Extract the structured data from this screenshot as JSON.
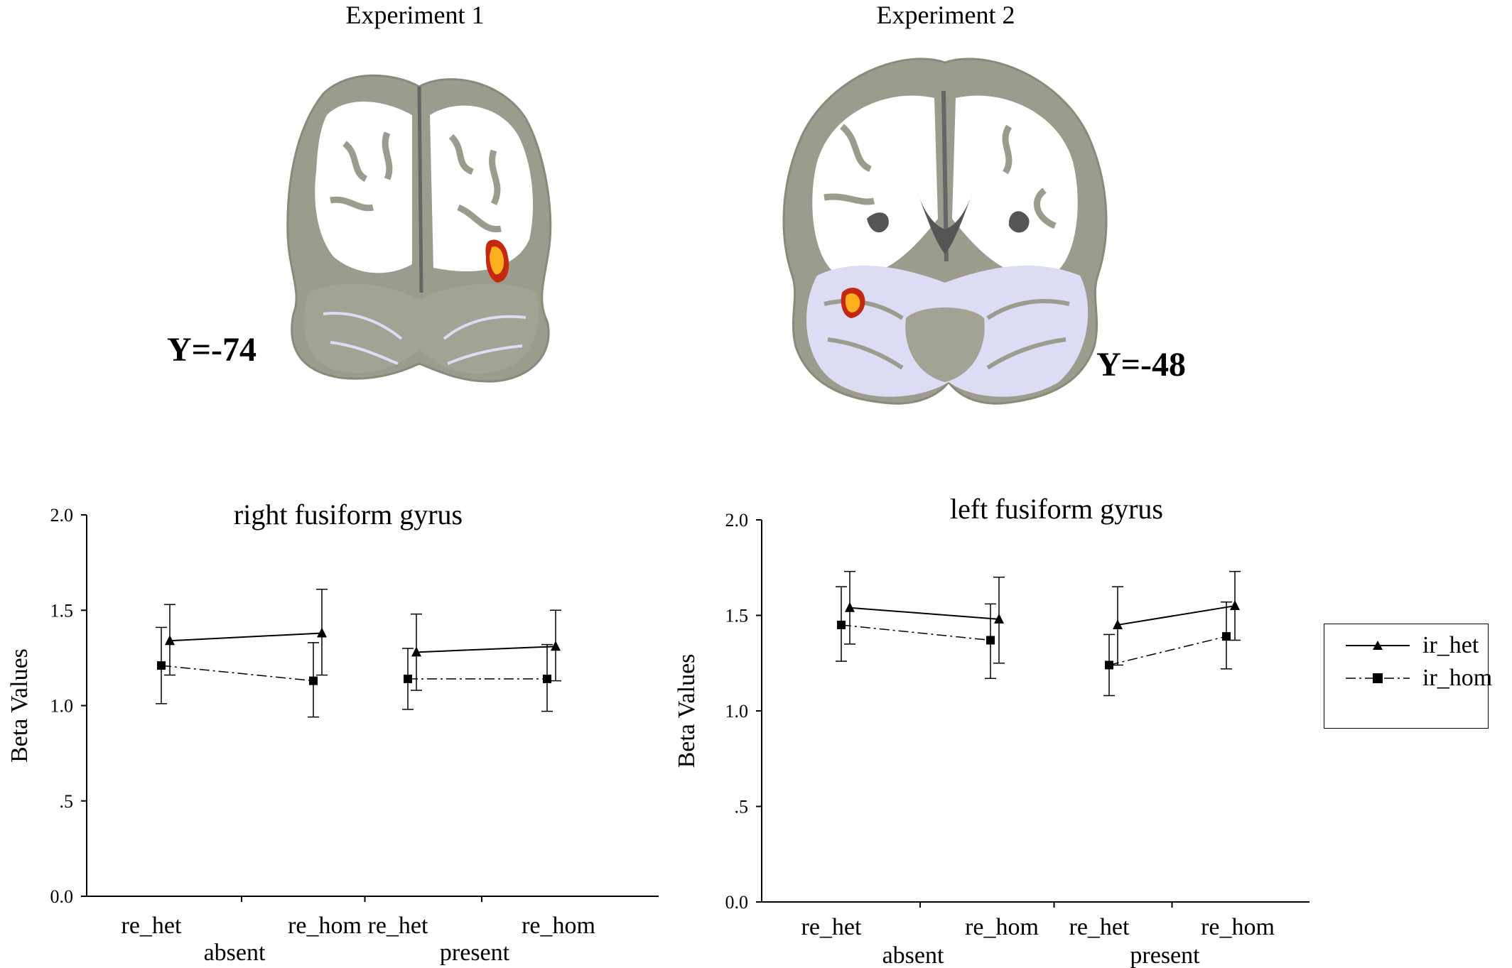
{
  "panels": {
    "exp1": {
      "title": "Experiment 1",
      "coord_label": "Y=-74"
    },
    "exp2": {
      "title": "Experiment 2",
      "coord_label": "Y=-48"
    }
  },
  "legend": {
    "items": [
      {
        "label": "ir_het",
        "marker": "triangle",
        "line": "solid"
      },
      {
        "label": "ir_hom",
        "marker": "square",
        "line": "dashdot"
      }
    ]
  },
  "colors": {
    "brain_gray": "#9c9c8e",
    "brain_white": "#ffffff",
    "brain_lavender": "#dcdcf4",
    "activation_outer": "#c4290f",
    "activation_inner": "#ffb01e",
    "ventricle": "#555555"
  },
  "chart_data": [
    {
      "type": "line",
      "title": "right fusiform gyrus",
      "ylabel": "Beta Values",
      "xlabel": "",
      "ylim": [
        0,
        2
      ],
      "yticks": [
        0,
        0.5,
        1.0,
        1.5,
        2.0
      ],
      "ytick_labels": [
        "0.0",
        ".5",
        "1.0",
        "1.5",
        "2.0"
      ],
      "categories": [
        "re_het",
        "re_hom",
        "re_het",
        "re_hom"
      ],
      "groups": [
        {
          "label": "absent",
          "categories": [
            0,
            1
          ]
        },
        {
          "label": "present",
          "categories": [
            2,
            3
          ]
        }
      ],
      "series": [
        {
          "name": "ir_het",
          "values": [
            1.34,
            1.38,
            1.28,
            1.31
          ],
          "err_low": [
            1.16,
            1.16,
            1.08,
            1.13
          ],
          "err_high": [
            1.53,
            1.61,
            1.48,
            1.5
          ]
        },
        {
          "name": "ir_hom",
          "values": [
            1.21,
            1.13,
            1.14,
            1.14
          ],
          "err_low": [
            1.01,
            0.94,
            0.98,
            0.97
          ],
          "err_high": [
            1.41,
            1.33,
            1.3,
            1.32
          ]
        }
      ],
      "grid": false
    },
    {
      "type": "line",
      "title": "left fusiform gyrus",
      "ylabel": "Beta Values",
      "xlabel": "",
      "ylim": [
        0,
        2
      ],
      "yticks": [
        0,
        0.5,
        1.0,
        1.5,
        2.0
      ],
      "ytick_labels": [
        "0.0",
        ".5",
        "1.0",
        "1.5",
        "2.0"
      ],
      "categories": [
        "re_het",
        "re_hom",
        "re_het",
        "re_hom"
      ],
      "groups": [
        {
          "label": "absent",
          "categories": [
            0,
            1
          ]
        },
        {
          "label": "present",
          "categories": [
            2,
            3
          ]
        }
      ],
      "series": [
        {
          "name": "ir_het",
          "values": [
            1.54,
            1.48,
            1.45,
            1.55
          ],
          "err_low": [
            1.35,
            1.25,
            1.24,
            1.37
          ],
          "err_high": [
            1.73,
            1.7,
            1.65,
            1.73
          ]
        },
        {
          "name": "ir_hom",
          "values": [
            1.45,
            1.37,
            1.24,
            1.39
          ],
          "err_low": [
            1.26,
            1.17,
            1.08,
            1.22
          ],
          "err_high": [
            1.65,
            1.56,
            1.4,
            1.57
          ]
        }
      ],
      "grid": false
    }
  ]
}
